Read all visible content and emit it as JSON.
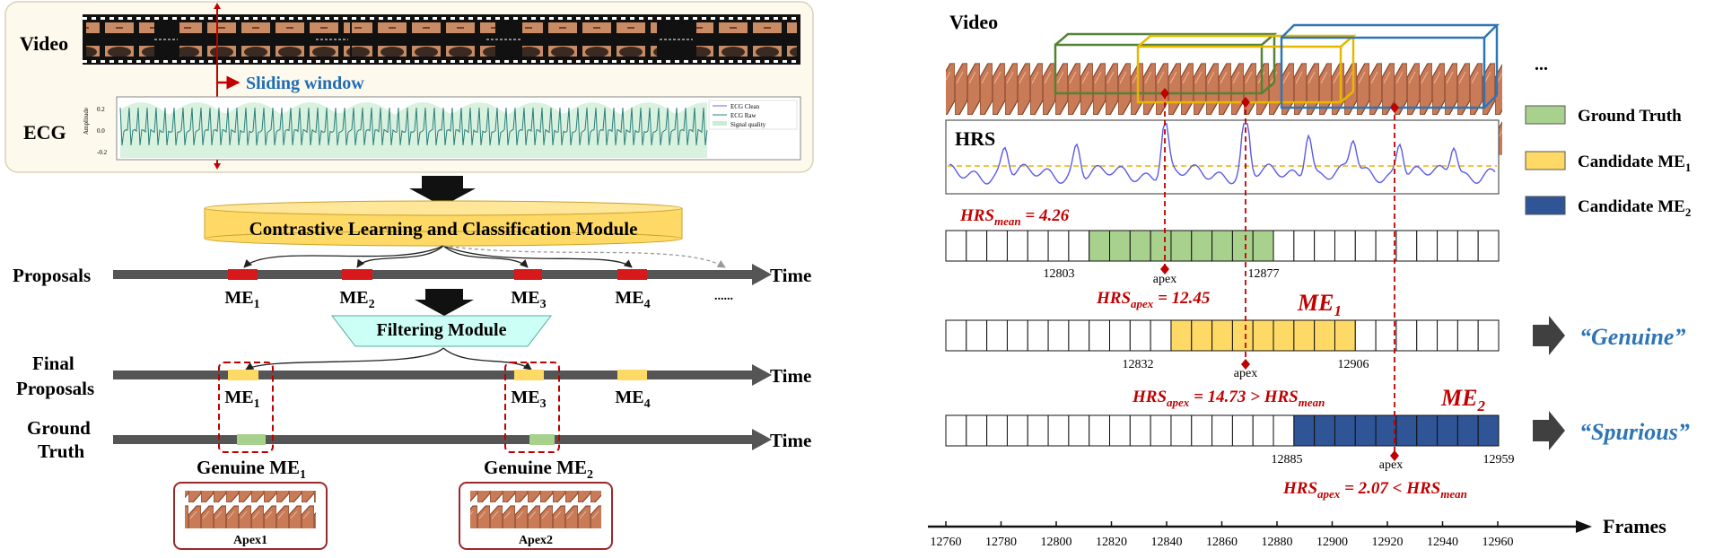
{
  "left": {
    "video_label": "Video",
    "ecg_label": "ECG",
    "sliding_window_label": "Sliding window",
    "ecg_ylabel": "Amplitude",
    "ecg_ticks": [
      "0.2",
      "0.0",
      "-0.2"
    ],
    "ecg_legend": [
      "ECG Clean",
      "ECG Raw",
      "Signal quality"
    ],
    "module_label": "Contrastive Learning and Classification Module",
    "filter_label": "Filtering Module",
    "proposals_label": "Proposals",
    "final_label_line1": "Final",
    "final_label_line2": "Proposals",
    "gt_label_line1": "Ground",
    "gt_label_line2": "Truth",
    "time_label": "Time",
    "ellipsis": "......",
    "me_base": "ME",
    "proposal_subs": [
      "1",
      "2",
      "3",
      "4"
    ],
    "final_subs": [
      "1",
      "3",
      "4"
    ],
    "genuine_base": "Genuine ME",
    "genuine_subs": [
      "1",
      "2"
    ],
    "apex_labels": [
      "Apex1",
      "Apex2"
    ],
    "colors": {
      "proposal": "#d7191c",
      "final": "#ffd966",
      "truth": "#a9d18e",
      "module_fill": "#ffd966",
      "filter_fill": "#ccfff5",
      "accent_blue": "#1f6eb5"
    }
  },
  "right": {
    "video_label": "Video",
    "ellipsis": "...",
    "hrs_label": "HRS",
    "hrs_mean_text": "HRS",
    "hrs_mean_sub": "mean",
    "hrs_mean_value": " = 4.26",
    "gt_start": "12803",
    "gt_end": "12877",
    "apex_label": "apex",
    "hrs_apex1_prefix": "HRS",
    "hrs_apex_sub": "apex",
    "hrs_apex1_value": " = 12.45",
    "me1_base": "ME",
    "me1_sub": "1",
    "c1_start": "12832",
    "c1_end": "12906",
    "hrs_apex2_value": " = 14.73 > HRS",
    "hrs_mean_sub2": "mean",
    "me2_base": "ME",
    "me2_sub": "2",
    "c2_start": "12885",
    "c2_end": "12959",
    "hrs_apex3_value": " = 2.07 < HRS",
    "genuine_quote": "“Genuine”",
    "spurious_quote": "“Spurious”",
    "legend": [
      {
        "label": "Ground Truth",
        "sub": "",
        "color": "#a9d18e"
      },
      {
        "label": "Candidate ME",
        "sub": "1",
        "color": "#ffd966"
      },
      {
        "label": "Candidate ME",
        "sub": "2",
        "color": "#2f5597"
      }
    ],
    "axis_ticks": [
      "12760",
      "12780",
      "12800",
      "12820",
      "12840",
      "12860",
      "12880",
      "12900",
      "12920",
      "12940",
      "12960"
    ],
    "frames_label": "Frames"
  }
}
